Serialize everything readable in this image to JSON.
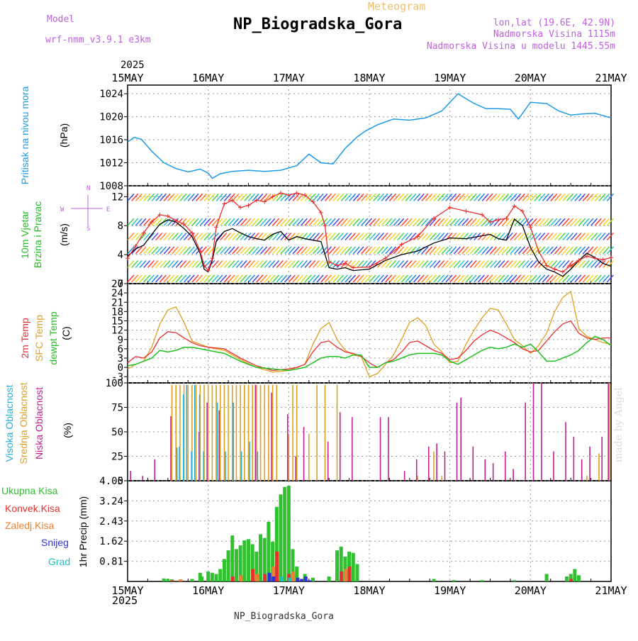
{
  "header": {
    "model_label": "Model",
    "model_name": "wrf-nmm_v3.9.1 e3km",
    "subtitle": "Meteogram",
    "title": "NP_Biogradska_Gora",
    "lonlat": "lon,lat (19.6E, 42.9N)",
    "elevation": "Nadmorska Visina 1115m",
    "model_elevation": "Nadmorska Visina u modelu 1445.55m",
    "footer": "NP_Biogradska_Gora",
    "credit": "made by Angel"
  },
  "time_axis": {
    "year": "2025",
    "ticks": [
      "15MAY",
      "16MAY",
      "17MAY",
      "18MAY",
      "19MAY",
      "20MAY",
      "21MAY"
    ]
  },
  "colors": {
    "pressure": "#1e9be6",
    "wind_label": "#20c020",
    "wind_speed": "#000000",
    "gust": "#e83030",
    "temp": "#e83030",
    "sfc_temp": "#e0a020",
    "dewpt": "#20c020",
    "high_cloud": "#20b0e0",
    "mid_cloud": "#e0a020",
    "low_cloud": "#c02090",
    "total_precip": "#30c030",
    "conv_precip": "#e83030",
    "frozen_precip": "#f08030",
    "snow": "#3030e0",
    "hail": "#20c0c0",
    "direction_axis": "#c060e0"
  },
  "chart_data": [
    {
      "type": "line",
      "name": "pressure",
      "ylabel_1": "Pritisak na nivou mora",
      "ylabel_2": "(hPa)",
      "yticks": [
        "1008",
        "1012",
        "1016",
        "1020",
        "1024"
      ],
      "ylim": [
        1008,
        1025.5
      ],
      "x": [
        0,
        0.08,
        0.17,
        0.3,
        0.45,
        0.6,
        0.75,
        0.9,
        1.0,
        1.05,
        1.15,
        1.3,
        1.5,
        1.7,
        1.9,
        2.1,
        2.25,
        2.4,
        2.55,
        2.7,
        2.85,
        2.95,
        3.1,
        3.3,
        3.5,
        3.7,
        3.9,
        4.1,
        4.3,
        4.45,
        4.6,
        4.75,
        4.85,
        5.0,
        5.2,
        5.35,
        5.5,
        5.65,
        5.8,
        6.0
      ],
      "series": [
        {
          "name": "Pritisak",
          "values": [
            1015.6,
            1016.4,
            1016.1,
            1014,
            1012,
            1011,
            1010.4,
            1010.9,
            1010.2,
            1009.3,
            1010.1,
            1010.5,
            1010.7,
            1010.5,
            1010.7,
            1011.5,
            1013.5,
            1012,
            1011.8,
            1014.5,
            1016.5,
            1017.5,
            1018.6,
            1019.6,
            1019.4,
            1019.8,
            1021,
            1024,
            1022.3,
            1021.4,
            1021.4,
            1021.3,
            1019.6,
            1022.5,
            1022.3,
            1021,
            1020.3,
            1020.5,
            1020.6,
            1019.8
          ]
        }
      ]
    },
    {
      "type": "line",
      "name": "wind",
      "ylabel_1": "10m Vjetar",
      "ylabel_2": "Brzina i Pravac",
      "ylabel_3": "(m/s)",
      "direction_labels": [
        "N",
        "E",
        "S",
        "W"
      ],
      "yticks": [
        "0",
        "4",
        "8",
        "12"
      ],
      "ylim": [
        0,
        13.5
      ],
      "barb_rows": [
        0.6,
        2.6,
        4.5,
        6.4,
        8.4,
        11.8
      ],
      "x": [
        0,
        0.1,
        0.2,
        0.3,
        0.4,
        0.5,
        0.6,
        0.7,
        0.8,
        0.9,
        0.95,
        1.0,
        1.05,
        1.1,
        1.2,
        1.3,
        1.4,
        1.5,
        1.6,
        1.7,
        1.8,
        1.9,
        2.0,
        2.1,
        2.2,
        2.3,
        2.4,
        2.45,
        2.5,
        2.6,
        2.7,
        2.8,
        3.0,
        3.2,
        3.4,
        3.6,
        3.8,
        4.0,
        4.2,
        4.4,
        4.5,
        4.6,
        4.7,
        4.8,
        4.9,
        5.0,
        5.1,
        5.2,
        5.3,
        5.4,
        5.5,
        5.6,
        5.7,
        5.8,
        5.9,
        6.0
      ],
      "series": [
        {
          "name": "Brzina",
          "values": [
            3.8,
            4.8,
            5.3,
            6.8,
            8.2,
            8.8,
            8.5,
            7.6,
            6.5,
            4.2,
            2.0,
            1.6,
            3.2,
            5.8,
            7.2,
            7.6,
            7.0,
            6.5,
            6.2,
            6.0,
            6.8,
            7.2,
            6.0,
            6.5,
            6.2,
            6.0,
            5.8,
            4.0,
            2.2,
            2.0,
            2.2,
            1.8,
            2.0,
            3.2,
            4.0,
            4.5,
            5.6,
            6.3,
            6.2,
            6.6,
            6.8,
            6.2,
            6.0,
            8.9,
            8.0,
            5.0,
            3.0,
            2.0,
            1.6,
            1.0,
            2.0,
            3.2,
            4.2,
            3.6,
            2.8,
            2.4
          ]
        },
        {
          "name": "Udari",
          "values": [
            3.5,
            5.2,
            7.0,
            8.5,
            9.5,
            9.3,
            8.7,
            8.2,
            7.0,
            4.5,
            2.5,
            1.8,
            3.5,
            7.8,
            11.0,
            11.5,
            10.5,
            10.8,
            11.5,
            11.3,
            12.0,
            12.5,
            12.2,
            12.5,
            12.2,
            11.3,
            9.8,
            8.0,
            3.0,
            2.5,
            2.8,
            2.2,
            2.3,
            3.5,
            5.4,
            6.5,
            9.0,
            10.5,
            10.0,
            9.5,
            8.5,
            8.8,
            9.0,
            10.7,
            10.0,
            7.8,
            4.5,
            2.5,
            2.0,
            1.6,
            2.5,
            3.2,
            3.8,
            3.5,
            3.3,
            3.6
          ]
        }
      ]
    },
    {
      "type": "line",
      "name": "temperature",
      "ylabel_1": "2m Temp",
      "ylabel_2": "SFC Temp",
      "ylabel_3": "dewpt Temp",
      "ylabel_4": "(C)",
      "yticks": [
        "-3",
        "0",
        "3",
        "6",
        "9",
        "12",
        "15",
        "18",
        "21",
        "24",
        "27"
      ],
      "ylim": [
        -5,
        27
      ],
      "x": [
        0,
        0.1,
        0.2,
        0.3,
        0.4,
        0.5,
        0.6,
        0.7,
        0.8,
        0.9,
        1.0,
        1.2,
        1.4,
        1.6,
        1.8,
        2.0,
        2.1,
        2.2,
        2.3,
        2.4,
        2.5,
        2.6,
        2.7,
        2.8,
        2.9,
        3.0,
        3.1,
        3.2,
        3.3,
        3.4,
        3.5,
        3.6,
        3.7,
        3.8,
        3.9,
        4.0,
        4.1,
        4.2,
        4.3,
        4.4,
        4.5,
        4.6,
        4.7,
        4.8,
        4.9,
        5.0,
        5.1,
        5.2,
        5.3,
        5.4,
        5.5,
        5.6,
        5.7,
        5.8,
        5.9,
        6.0
      ],
      "series": [
        {
          "name": "2m Temp",
          "values": [
            1.5,
            3.5,
            3.0,
            5.0,
            9.5,
            11.5,
            11.2,
            9.5,
            8.0,
            7.0,
            6.5,
            6.0,
            3.0,
            0.5,
            -1.0,
            -0.5,
            0.0,
            1.0,
            5.0,
            8.0,
            8.5,
            6.5,
            5.0,
            4.5,
            3.5,
            1.5,
            0.0,
            1.5,
            2.5,
            5.0,
            8.0,
            8.5,
            7.0,
            5.5,
            4.5,
            2.5,
            3.0,
            5.5,
            8.5,
            10.5,
            12.0,
            11.0,
            9.5,
            8.0,
            6.0,
            5.0,
            5.5,
            8.5,
            11.5,
            14.0,
            15.0,
            11.0,
            9.5,
            9.0,
            9.5,
            9.5
          ]
        },
        {
          "name": "SFC Temp",
          "values": [
            -0.5,
            1.0,
            2.0,
            6.5,
            14.0,
            18.5,
            19.5,
            14.5,
            8.5,
            7.5,
            6.5,
            5.5,
            2.5,
            0.0,
            -1.5,
            -1.0,
            0.0,
            1.0,
            7.5,
            12.5,
            14.5,
            9.0,
            5.5,
            4.0,
            3.5,
            -3.0,
            -2.0,
            1.0,
            4.0,
            9.0,
            14.5,
            16.0,
            13.5,
            7.5,
            5.0,
            1.5,
            2.0,
            7.5,
            12.0,
            16.0,
            19.0,
            18.5,
            14.0,
            9.0,
            7.0,
            4.5,
            7.0,
            11.0,
            18.0,
            22.5,
            24.5,
            12.5,
            10.0,
            9.0,
            8.0,
            7.5
          ]
        },
        {
          "name": "dewpt Temp",
          "values": [
            0.5,
            1.0,
            2.0,
            3.0,
            5.5,
            5.0,
            5.5,
            6.5,
            6.5,
            6.0,
            5.5,
            4.5,
            2.0,
            0.0,
            -0.5,
            -1.0,
            -0.5,
            0.0,
            1.5,
            3.0,
            3.5,
            3.5,
            3.0,
            4.0,
            4.0,
            0.0,
            0.0,
            1.5,
            2.0,
            3.0,
            4.0,
            4.5,
            4.5,
            4.5,
            4.0,
            2.0,
            1.0,
            2.5,
            4.0,
            5.5,
            6.5,
            6.0,
            6.5,
            7.5,
            6.5,
            7.5,
            5.0,
            2.0,
            2.0,
            3.0,
            4.0,
            5.5,
            8.0,
            10.0,
            9.0,
            7.0
          ]
        }
      ]
    },
    {
      "type": "bar",
      "name": "clouds",
      "ylabel_1": "Visoka Oblacnost",
      "ylabel_2": "Srednja Oblacnost",
      "ylabel_3": "Niska Oblacnost",
      "ylabel_4": "(%)",
      "yticks": [
        "0",
        "25",
        "50",
        "75",
        "100"
      ],
      "ylim": [
        0,
        100
      ],
      "series": [
        {
          "name": "Niska",
          "x": [
            0.05,
            0.2,
            0.35,
            0.55,
            0.9,
            1.0,
            1.15,
            1.6,
            1.8,
            2.0,
            2.1,
            2.2,
            2.5,
            2.65,
            2.8,
            3.15,
            3.25,
            3.45,
            3.6,
            3.75,
            3.85,
            3.95,
            4.1,
            4.15,
            4.3,
            4.45,
            4.55,
            4.7,
            4.8,
            4.95,
            5.05,
            5.15,
            5.3,
            5.45,
            5.55,
            5.65,
            5.75,
            5.9,
            5.98
          ],
          "values": [
            10,
            5,
            22,
            66,
            50,
            80,
            72,
            98,
            90,
            68,
            25,
            55,
            40,
            70,
            65,
            65,
            65,
            10,
            22,
            35,
            38,
            30,
            80,
            85,
            35,
            22,
            18,
            30,
            12,
            80,
            100,
            100,
            30,
            60,
            45,
            22,
            35,
            45,
            100
          ]
        },
        {
          "name": "Srednja",
          "x": [
            0.55,
            0.6,
            0.65,
            0.7,
            0.75,
            0.8,
            0.85,
            0.9,
            0.95,
            1.0,
            1.05,
            1.1,
            1.15,
            1.2,
            1.25,
            1.3,
            1.35,
            1.4,
            1.45,
            1.5,
            1.55,
            1.6,
            1.65,
            1.7,
            1.75,
            1.8,
            1.85,
            2.0,
            2.05,
            2.1,
            2.25,
            2.35,
            2.45,
            2.6,
            3.6,
            3.8,
            3.9,
            5.7,
            5.85,
            5.98
          ],
          "values": [
            98,
            98,
            98,
            98,
            98,
            98,
            98,
            98,
            98,
            98,
            98,
            98,
            98,
            98,
            98,
            98,
            98,
            98,
            98,
            98,
            98,
            98,
            98,
            98,
            98,
            98,
            98,
            48,
            98,
            98,
            48,
            98,
            98,
            98,
            5,
            30,
            5,
            5,
            28,
            100
          ]
        },
        {
          "name": "Visoka",
          "x": [
            0.6,
            0.63,
            0.68,
            0.72,
            0.78,
            0.82,
            0.88,
            0.93,
            1.1,
            1.2,
            1.3,
            1.4,
            1.5,
            1.6
          ],
          "values": [
            34,
            35,
            88,
            98,
            30,
            98,
            88,
            30,
            80,
            30,
            80,
            30,
            40,
            30
          ]
        }
      ]
    },
    {
      "type": "bar",
      "name": "precipitation",
      "ylabel_1": "1hr Precip (mm)",
      "legend": [
        "Ukupna Kisa",
        "Konvek.Kisa",
        "Zaledj.Kisa",
        "Snijeg",
        "Grad"
      ],
      "yticks": [
        "0.81",
        "1.62",
        "2.43",
        "3.24",
        "4.05"
      ],
      "ylim": [
        0,
        4.05
      ],
      "series": [
        {
          "name": "Ukupna Kisa",
          "x": [
            0.45,
            0.5,
            0.55,
            0.65,
            0.8,
            0.9,
            0.92,
            1.0,
            1.05,
            1.1,
            1.15,
            1.2,
            1.25,
            1.3,
            1.35,
            1.4,
            1.45,
            1.5,
            1.55,
            1.6,
            1.65,
            1.7,
            1.75,
            1.8,
            1.85,
            1.9,
            1.95,
            2.0,
            2.05,
            2.1,
            2.2,
            2.3,
            2.5,
            2.6,
            2.65,
            2.7,
            2.75,
            2.8,
            2.85,
            3.8,
            4.05,
            4.4,
            4.8,
            5.2,
            5.45,
            5.5,
            5.55,
            5.6
          ],
          "values": [
            0.12,
            0.1,
            0.08,
            0.05,
            0.1,
            0.35,
            0.2,
            0.4,
            0.35,
            0.3,
            0.5,
            0.9,
            1.25,
            1.85,
            1.3,
            1.45,
            1.65,
            1.7,
            1.5,
            1.2,
            1.9,
            1.75,
            2.4,
            1.6,
            3.0,
            3.5,
            3.8,
            3.85,
            1.3,
            0.6,
            0.3,
            0.15,
            0.2,
            1.25,
            1.4,
            1.0,
            1.2,
            1.15,
            0.7,
            0.1,
            0.05,
            0.05,
            0.05,
            0.3,
            0.2,
            0.3,
            0.5,
            0.25
          ]
        },
        {
          "name": "Konvek.Kisa",
          "x": [
            0.55,
            1.3,
            1.55,
            1.7,
            1.85,
            2.0,
            2.65,
            2.75,
            5.5
          ],
          "values": [
            0.05,
            0.2,
            0.5,
            0.3,
            1.2,
            0.3,
            0.4,
            0.6,
            0.1
          ]
        },
        {
          "name": "Zaledj.Kisa",
          "x": [
            0.65,
            1.4,
            1.6,
            1.8,
            2.05,
            2.7
          ],
          "values": [
            0.08,
            0.25,
            0.3,
            0.6,
            0.4,
            0.5
          ]
        },
        {
          "name": "Snijeg",
          "x": [
            1.75,
            1.8,
            2.1,
            2.15,
            2.2,
            2.25
          ],
          "values": [
            0.35,
            0.2,
            0.15,
            0.1,
            0.2,
            0.05
          ]
        },
        {
          "name": "Grad",
          "x": [
            1.9,
            2.0
          ],
          "values": [
            0.2,
            0.15
          ]
        }
      ]
    }
  ]
}
